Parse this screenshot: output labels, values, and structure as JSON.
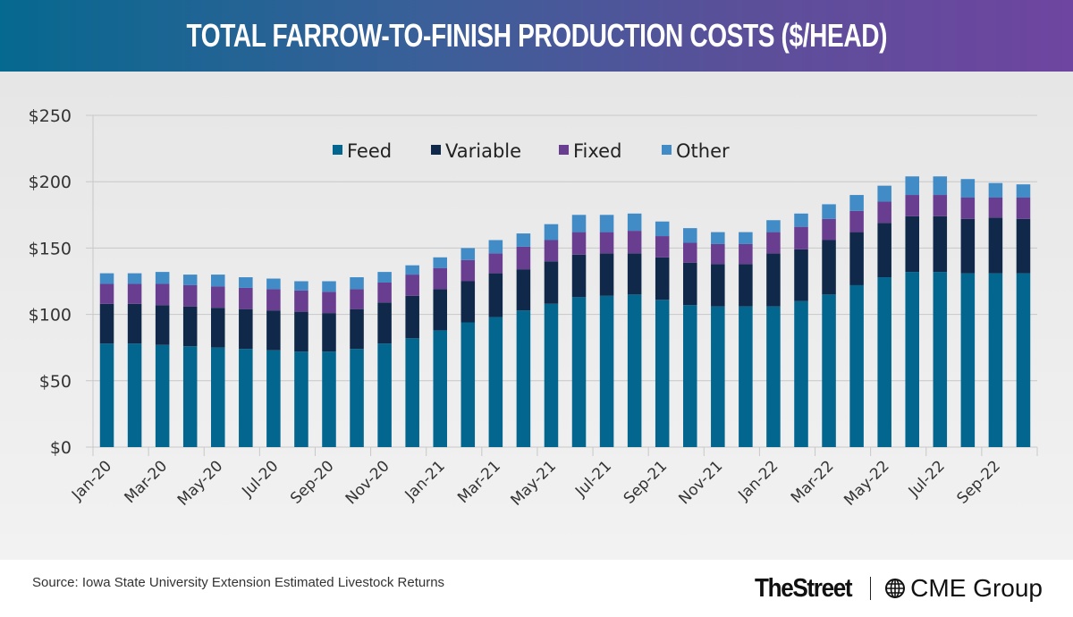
{
  "header": {
    "title": "TOTAL FARROW-TO-FINISH PRODUCTION COSTS ($/HEAD)"
  },
  "footer": {
    "source": "Source: Iowa State University Extension Estimated Livestock Returns",
    "logo_thestreet": "TheStreet",
    "logo_cme": "CME Group"
  },
  "colors": {
    "feed": "#02668f",
    "variable": "#10294a",
    "fixed": "#693d8f",
    "other": "#418cc6",
    "grid": "#c8c8c8",
    "text": "#333333"
  },
  "chart_data": {
    "type": "bar",
    "stacked": true,
    "title": "TOTAL FARROW-TO-FINISH PRODUCTION COSTS ($/HEAD)",
    "xlabel": "",
    "ylabel": "",
    "ylim": [
      0,
      250
    ],
    "yticks": [
      0,
      50,
      100,
      150,
      200,
      250
    ],
    "ytick_labels": [
      "$0",
      "$50",
      "$100",
      "$150",
      "$200",
      "$250"
    ],
    "grid": true,
    "legend_position": "top-center",
    "categories": [
      "Jan-20",
      "Feb-20",
      "Mar-20",
      "Apr-20",
      "May-20",
      "Jun-20",
      "Jul-20",
      "Aug-20",
      "Sep-20",
      "Oct-20",
      "Nov-20",
      "Dec-20",
      "Jan-21",
      "Feb-21",
      "Mar-21",
      "Apr-21",
      "May-21",
      "Jun-21",
      "Jul-21",
      "Aug-21",
      "Sep-21",
      "Oct-21",
      "Nov-21",
      "Dec-21",
      "Jan-22",
      "Feb-22",
      "Mar-22",
      "Apr-22",
      "May-22",
      "Jun-22",
      "Jul-22",
      "Aug-22",
      "Sep-22",
      "Oct-22"
    ],
    "xtick_labels": [
      "Jan-20",
      "Mar-20",
      "May-20",
      "Jul-20",
      "Sep-20",
      "Nov-20",
      "Jan-21",
      "Mar-21",
      "May-21",
      "Jul-21",
      "Sep-21",
      "Nov-21",
      "Jan-22",
      "Mar-22",
      "May-22",
      "Jul-22",
      "Sep-22"
    ],
    "series": [
      {
        "name": "Feed",
        "values": [
          78,
          78,
          77,
          76,
          75,
          74,
          73,
          72,
          72,
          74,
          78,
          82,
          88,
          94,
          98,
          103,
          108,
          113,
          114,
          115,
          111,
          107,
          106,
          106,
          106,
          110,
          115,
          122,
          128,
          132,
          132,
          131,
          131,
          131
        ]
      },
      {
        "name": "Variable",
        "values": [
          30,
          30,
          30,
          30,
          30,
          30,
          30,
          30,
          29,
          30,
          31,
          32,
          31,
          31,
          33,
          31,
          32,
          32,
          32,
          31,
          32,
          32,
          32,
          32,
          40,
          39,
          41,
          40,
          41,
          42,
          42,
          41,
          42,
          41
        ]
      },
      {
        "name": "Fixed",
        "values": [
          15,
          15,
          16,
          16,
          16,
          16,
          16,
          16,
          16,
          15,
          15,
          16,
          16,
          16,
          15,
          17,
          16,
          17,
          16,
          17,
          16,
          15,
          15,
          15,
          16,
          17,
          16,
          16,
          16,
          16,
          16,
          16,
          15,
          16
        ]
      },
      {
        "name": "Other",
        "values": [
          8,
          8,
          9,
          8,
          9,
          8,
          8,
          7,
          8,
          9,
          8,
          7,
          8,
          9,
          10,
          10,
          12,
          13,
          13,
          13,
          11,
          11,
          9,
          9,
          9,
          10,
          11,
          12,
          12,
          14,
          14,
          14,
          11,
          10
        ]
      }
    ]
  }
}
